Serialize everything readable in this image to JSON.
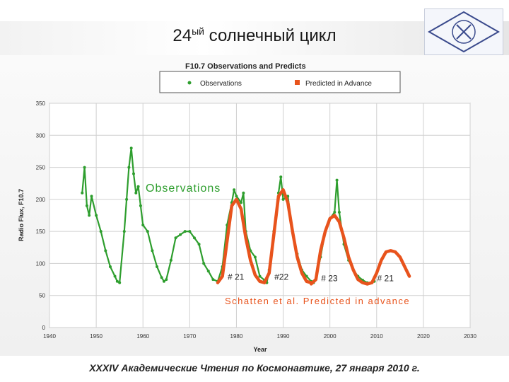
{
  "slide": {
    "title_main": "24",
    "title_sup": "ый",
    "title_rest": " солнечный цикл",
    "footer": "XXXIV  Академические Чтения по Космонавтике,  27 января 2010 г."
  },
  "chart_data": {
    "type": "line",
    "title": "F10.7 Observations and Predicts",
    "xlabel": "Year",
    "ylabel": "Radio Flux, F10.7",
    "xlim": [
      1940,
      2030
    ],
    "ylim": [
      0,
      350
    ],
    "xticks": [
      "1940",
      "1950",
      "1960",
      "1970",
      "1980",
      "1990",
      "2000",
      "2010",
      "2020",
      "2030"
    ],
    "yticks": [
      "0",
      "50",
      "100",
      "150",
      "200",
      "250",
      "300",
      "350"
    ],
    "grid": true,
    "legend_position": "top",
    "colors": {
      "observations": "#2e9e2e",
      "predicted": "#e8531c"
    },
    "series": [
      {
        "name": "Observations",
        "x": [
          1947,
          1947.5,
          1948,
          1948.5,
          1949,
          1950,
          1951,
          1952,
          1953,
          1954,
          1954.5,
          1955,
          1956,
          1956.5,
          1957,
          1957.5,
          1958,
          1958.5,
          1959,
          1959.5,
          1960,
          1961,
          1962,
          1963,
          1964,
          1964.5,
          1965,
          1966,
          1967,
          1968,
          1969,
          1970,
          1971,
          1972,
          1973,
          1974,
          1975,
          1976,
          1977,
          1978,
          1979,
          1979.5,
          1980,
          1981,
          1981.5,
          1982,
          1983,
          1984,
          1985,
          1986,
          1986.5,
          1987,
          1988,
          1989,
          1989.5,
          1990,
          1991,
          1992,
          1993,
          1994,
          1995,
          1996,
          1996.5,
          1997,
          1998,
          1999,
          2000,
          2001,
          2001.5,
          2002,
          2003,
          2004,
          2005,
          2006,
          2007,
          2008,
          2009,
          2009.5
        ],
        "y": [
          210,
          250,
          190,
          175,
          205,
          175,
          150,
          120,
          95,
          80,
          72,
          70,
          150,
          200,
          250,
          280,
          240,
          210,
          220,
          190,
          160,
          150,
          120,
          95,
          78,
          72,
          75,
          105,
          140,
          145,
          150,
          150,
          140,
          130,
          100,
          88,
          75,
          72,
          95,
          160,
          195,
          215,
          205,
          195,
          210,
          150,
          120,
          110,
          80,
          74,
          70,
          90,
          150,
          210,
          235,
          200,
          205,
          150,
          115,
          90,
          80,
          72,
          70,
          75,
          110,
          150,
          170,
          180,
          230,
          180,
          130,
          105,
          90,
          80,
          74,
          70,
          70,
          72
        ]
      }
    ],
    "predicted": [
      {
        "name": "Predicted in Advance",
        "cycle": "# 21",
        "x": [
          1976,
          1977,
          1978,
          1979,
          1980,
          1981,
          1982,
          1983,
          1984,
          1985,
          1986
        ],
        "y": [
          70,
          80,
          135,
          190,
          200,
          185,
          140,
          105,
          82,
          72,
          70
        ]
      },
      {
        "cycle": "#22",
        "x": [
          1986,
          1987,
          1988,
          1989,
          1990,
          1991,
          1992,
          1993,
          1994,
          1995,
          1996
        ],
        "y": [
          70,
          85,
          145,
          205,
          215,
          195,
          150,
          110,
          85,
          72,
          70
        ]
      },
      {
        "cycle": "# 23",
        "x": [
          1996,
          1997,
          1998,
          1999,
          2000,
          2001,
          2002,
          2003,
          2004,
          2005,
          2006,
          2007,
          2008
        ],
        "y": [
          68,
          75,
          120,
          150,
          170,
          175,
          165,
          140,
          110,
          90,
          75,
          70,
          68
        ]
      },
      {
        "cycle": "# 21",
        "x": [
          2008,
          2009,
          2010,
          2011,
          2012,
          2013,
          2014,
          2015,
          2016,
          2017
        ],
        "y": [
          68,
          70,
          85,
          105,
          118,
          120,
          118,
          110,
          95,
          80
        ]
      }
    ],
    "annotations": {
      "observations": "Observations",
      "schatten": "Schatten et al. Predicted in advance"
    }
  }
}
